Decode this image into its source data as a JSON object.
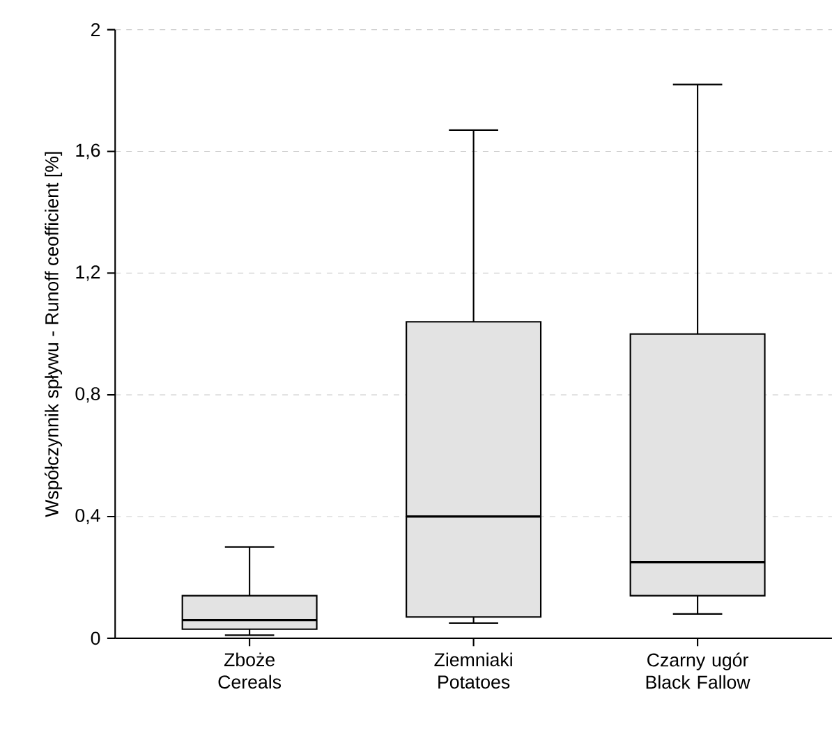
{
  "chart_data": {
    "type": "box",
    "ylabel": "Współczynnik spływu - Runoff ceofficient [%]",
    "categories": [
      "Zboże Cereals",
      "Ziemniaki Potatoes",
      "Czarny ugór Black Fallow"
    ],
    "boxes": [
      {
        "low": 0.01,
        "q1": 0.03,
        "median": 0.06,
        "q3": 0.14,
        "high": 0.3
      },
      {
        "low": 0.05,
        "q1": 0.07,
        "median": 0.4,
        "q3": 1.04,
        "high": 1.67
      },
      {
        "low": 0.08,
        "q1": 0.14,
        "median": 0.25,
        "q3": 1.0,
        "high": 1.82
      }
    ],
    "color": "#e3e3e3",
    "ylim": [
      0,
      2
    ],
    "yticks": [
      0,
      {
        "value": 0.4,
        "label": "0,4"
      },
      {
        "value": 0.8,
        "label": "0,8"
      },
      {
        "value": 1.2,
        "label": "1,2"
      },
      {
        "value": 1.6,
        "label": "1,6"
      },
      2
    ],
    "grid": "y"
  }
}
